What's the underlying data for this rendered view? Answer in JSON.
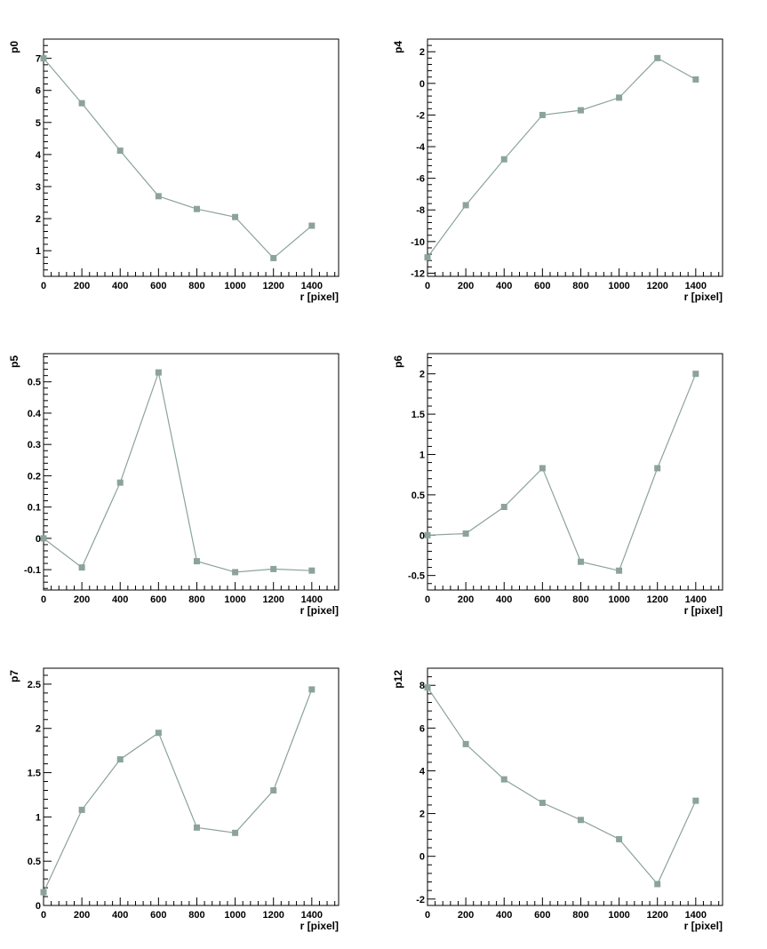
{
  "figure": {
    "marker_color": "#8ca39a",
    "line_color": "#8ca39a"
  },
  "chart_data": [
    {
      "type": "line",
      "title": "",
      "xlabel": "r [pixel]",
      "ylabel": "p0",
      "x": [
        0,
        200,
        400,
        600,
        800,
        1000,
        1200,
        1400
      ],
      "y": [
        7.0,
        5.6,
        4.12,
        2.7,
        2.3,
        2.05,
        0.77,
        1.78
      ],
      "xlim": [
        0,
        1540
      ],
      "ylim": [
        0.2,
        7.6
      ],
      "xticks": [
        0,
        200,
        400,
        600,
        800,
        1000,
        1200,
        1400
      ],
      "xtick_labels": [
        "0",
        "200",
        "400",
        "600",
        "800",
        "1000",
        "1200",
        "1400"
      ],
      "yticks": [
        1,
        2,
        3,
        4,
        5,
        6,
        7
      ],
      "ytick_labels": [
        "1",
        "2",
        "3",
        "4",
        "5",
        "6",
        "7"
      ],
      "grid": false
    },
    {
      "type": "line",
      "title": "",
      "xlabel": "r [pixel]",
      "ylabel": "p4",
      "x": [
        0,
        200,
        400,
        600,
        800,
        1000,
        1200,
        1400
      ],
      "y": [
        -11.0,
        -7.7,
        -4.8,
        -2.0,
        -1.7,
        -0.9,
        1.6,
        0.25
      ],
      "xlim": [
        0,
        1540
      ],
      "ylim": [
        -12.2,
        2.8
      ],
      "xticks": [
        0,
        200,
        400,
        600,
        800,
        1000,
        1200,
        1400
      ],
      "xtick_labels": [
        "0",
        "200",
        "400",
        "600",
        "800",
        "1000",
        "1200",
        "1400"
      ],
      "yticks": [
        -12,
        -10,
        -8,
        -6,
        -4,
        -2,
        0,
        2
      ],
      "ytick_labels": [
        "-12",
        "-10",
        "-8",
        "-6",
        "-4",
        "-2",
        "0",
        "2"
      ],
      "grid": false
    },
    {
      "type": "line",
      "title": "",
      "xlabel": "r [pixel]",
      "ylabel": "p5",
      "x": [
        0,
        200,
        400,
        600,
        800,
        1000,
        1200,
        1400
      ],
      "y": [
        0.0,
        -0.093,
        0.178,
        0.53,
        -0.073,
        -0.108,
        -0.098,
        -0.103
      ],
      "xlim": [
        0,
        1540
      ],
      "ylim": [
        -0.165,
        0.59
      ],
      "xticks": [
        0,
        200,
        400,
        600,
        800,
        1000,
        1200,
        1400
      ],
      "xtick_labels": [
        "0",
        "200",
        "400",
        "600",
        "800",
        "1000",
        "1200",
        "1400"
      ],
      "yticks": [
        -0.1,
        0,
        0.1,
        0.2,
        0.3,
        0.4,
        0.5
      ],
      "ytick_labels": [
        "-0.1",
        "0",
        "0.1",
        "0.2",
        "0.3",
        "0.4",
        "0.5"
      ],
      "grid": false
    },
    {
      "type": "line",
      "title": "",
      "xlabel": "r [pixel]",
      "ylabel": "p6",
      "x": [
        0,
        200,
        400,
        600,
        800,
        1000,
        1200,
        1400
      ],
      "y": [
        0.0,
        0.02,
        0.35,
        0.83,
        -0.33,
        -0.44,
        0.83,
        2.0
      ],
      "xlim": [
        0,
        1540
      ],
      "ylim": [
        -0.68,
        2.25
      ],
      "xticks": [
        0,
        200,
        400,
        600,
        800,
        1000,
        1200,
        1400
      ],
      "xtick_labels": [
        "0",
        "200",
        "400",
        "600",
        "800",
        "1000",
        "1200",
        "1400"
      ],
      "yticks": [
        -0.5,
        0,
        0.5,
        1,
        1.5,
        2
      ],
      "ytick_labels": [
        "-0.5",
        "0",
        "0.5",
        "1",
        "1.5",
        "2"
      ],
      "grid": false
    },
    {
      "type": "line",
      "title": "",
      "xlabel": "r [pixel]",
      "ylabel": "p7",
      "x": [
        0,
        200,
        400,
        600,
        800,
        1000,
        1200,
        1400
      ],
      "y": [
        0.15,
        1.08,
        1.65,
        1.95,
        0.88,
        0.82,
        1.3,
        2.44
      ],
      "xlim": [
        0,
        1540
      ],
      "ylim": [
        0.0,
        2.68
      ],
      "xticks": [
        0,
        200,
        400,
        600,
        800,
        1000,
        1200,
        1400
      ],
      "xtick_labels": [
        "0",
        "200",
        "400",
        "600",
        "800",
        "1000",
        "1200",
        "1400"
      ],
      "yticks": [
        0,
        0.5,
        1,
        1.5,
        2,
        2.5
      ],
      "ytick_labels": [
        "0",
        "0.5",
        "1",
        "1.5",
        "2",
        "2.5"
      ],
      "grid": false
    },
    {
      "type": "line",
      "title": "",
      "xlabel": "r [pixel]",
      "ylabel": "p12",
      "x": [
        0,
        200,
        400,
        600,
        800,
        1000,
        1200,
        1400
      ],
      "y": [
        7.9,
        5.25,
        3.6,
        2.5,
        1.7,
        0.8,
        -1.3,
        2.6
      ],
      "xlim": [
        0,
        1540
      ],
      "ylim": [
        -2.3,
        8.8
      ],
      "xticks": [
        0,
        200,
        400,
        600,
        800,
        1000,
        1200,
        1400
      ],
      "xtick_labels": [
        "0",
        "200",
        "400",
        "600",
        "800",
        "1000",
        "1200",
        "1400"
      ],
      "yticks": [
        -2,
        0,
        2,
        4,
        6,
        8
      ],
      "ytick_labels": [
        "-2",
        "0",
        "2",
        "4",
        "6",
        "8"
      ],
      "grid": false
    }
  ]
}
